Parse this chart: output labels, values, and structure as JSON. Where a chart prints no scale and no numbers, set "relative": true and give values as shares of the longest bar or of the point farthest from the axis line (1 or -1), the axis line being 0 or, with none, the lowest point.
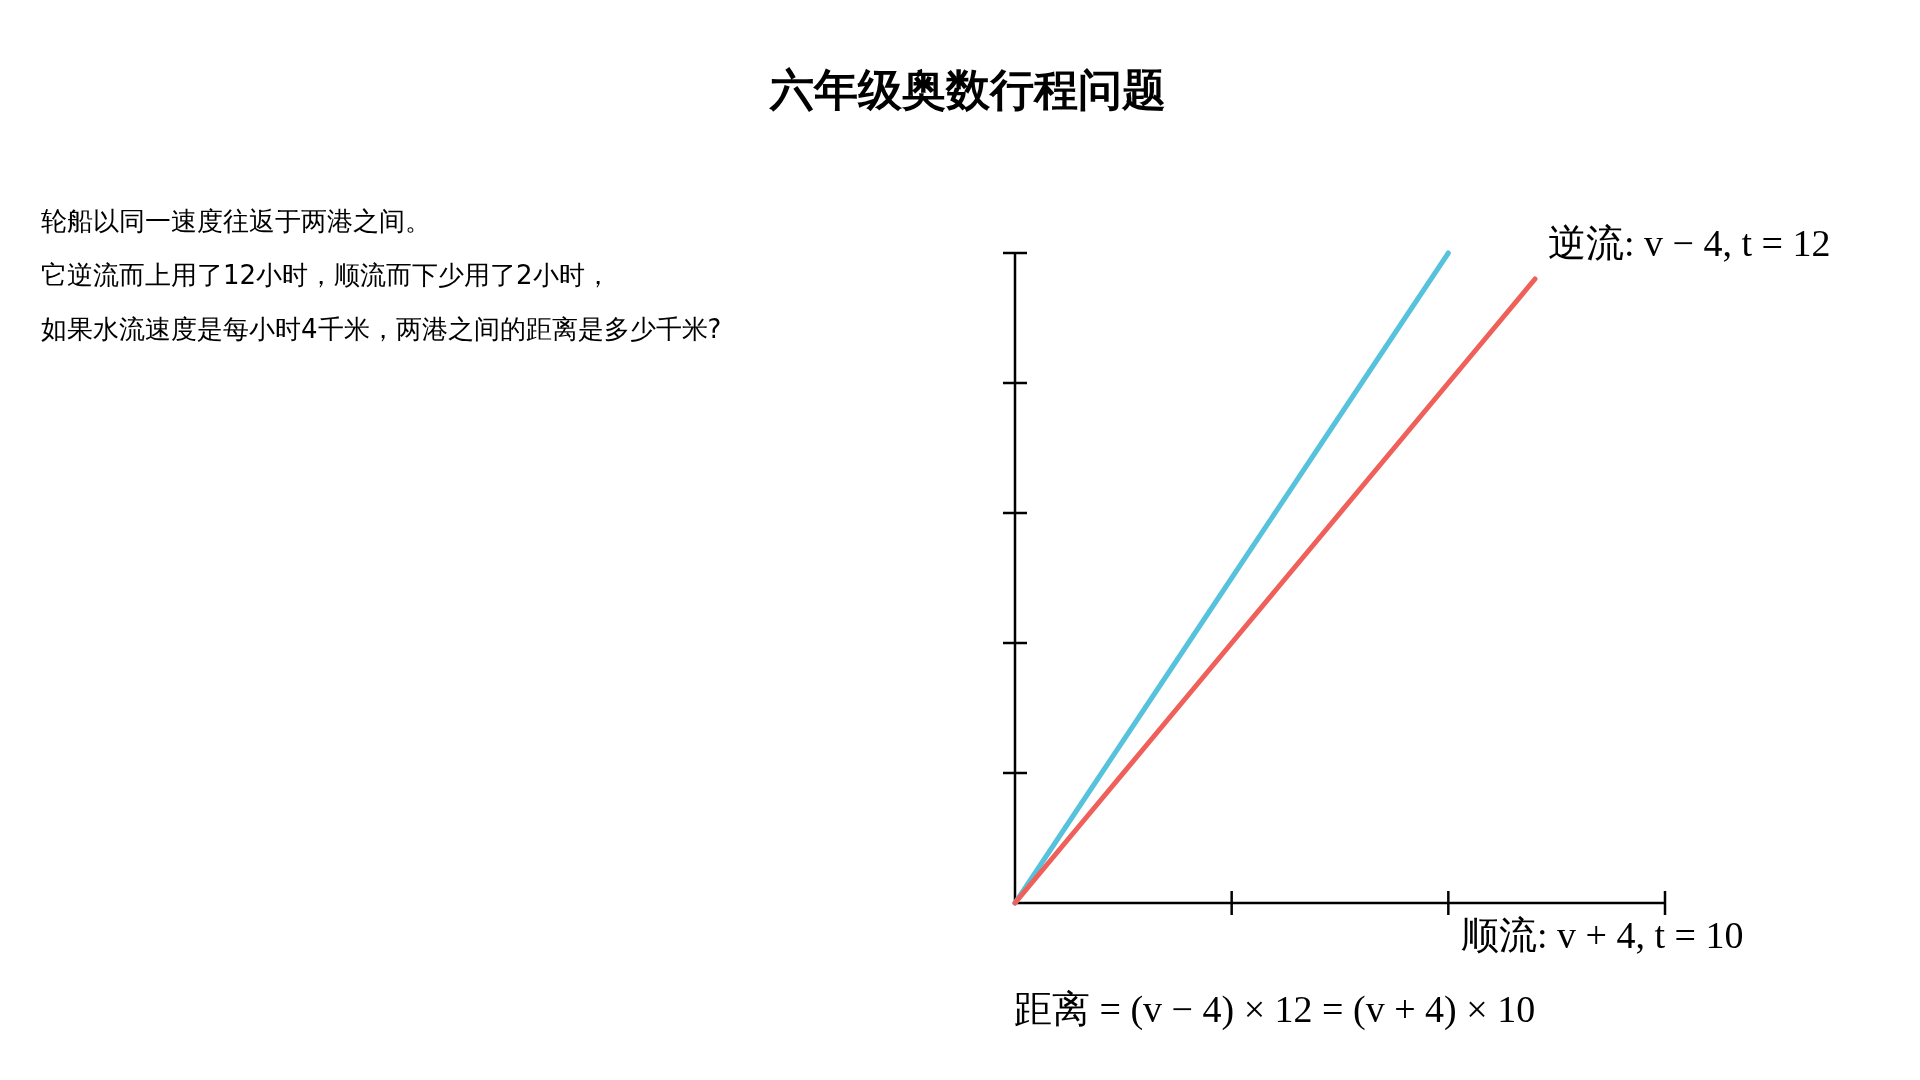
{
  "chart_data": {
    "type": "line",
    "title": "六年级奥数行程问题",
    "relative": true,
    "categories": [
      null,
      null,
      null,
      null,
      null,
      null,
      null,
      null,
      null,
      null,
      null,
      null,
      null,
      null,
      null,
      null
    ],
    "line_style": "solid",
    "series": [
      {
        "color": "#56c2dc",
        "values": [
          0,
          0.1,
          0.2,
          0.3,
          0.4,
          0.5,
          0.6,
          0.7,
          0.8,
          0.9,
          1,
          null,
          null,
          null,
          null,
          null
        ]
      },
      {
        "color": "#f0605a",
        "values": [
          0,
          0.08,
          0.16,
          0.24,
          0.32,
          0.4,
          0.48,
          0.56,
          0.64,
          0.72,
          0.8,
          0.88,
          0.96,
          null,
          null,
          null
        ]
      }
    ],
    "annotations": [
      "轮船以同一速度往返于两港之间。",
      "它逆流而上用了12小时，顺流而下少用了2小时，",
      "如果水流速度是每小时4千米，两港之间的距离是多少千米?",
      "逆流: v − 4, t = 12",
      "顺流: v + 4, t = 10",
      "距离 = (v − 4) × 12 = (v + 4) × 10"
    ]
  }
}
